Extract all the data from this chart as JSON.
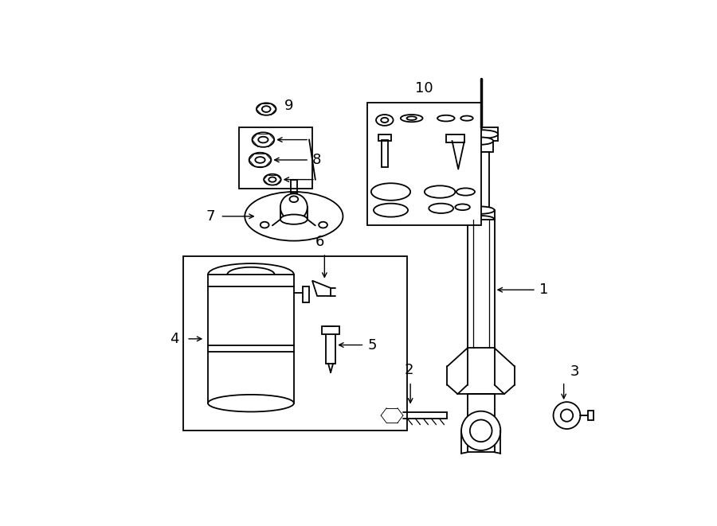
{
  "bg_color": "#ffffff",
  "line_color": "#000000",
  "lw": 1.3
}
